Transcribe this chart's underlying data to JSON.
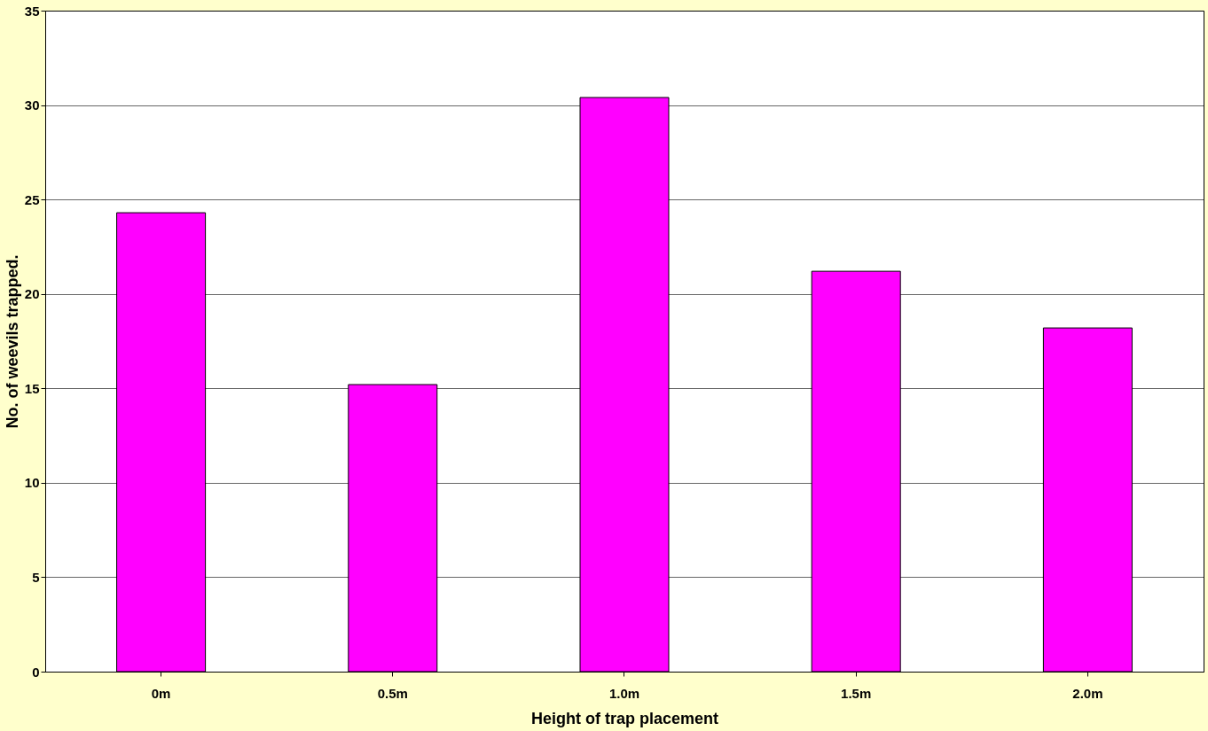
{
  "chart_data": {
    "type": "bar",
    "xlabel": "Height of trap placement",
    "ylabel": "No. of weevils trapped.",
    "categories": [
      "0m",
      "0.5m",
      "1.0m",
      "1.5m",
      "2.0m"
    ],
    "values": [
      24.3,
      15.2,
      30.4,
      21.2,
      18.2
    ],
    "color": "#ff00ff",
    "ylim": [
      0,
      35
    ],
    "yticks": [
      0,
      5,
      10,
      15,
      20,
      25,
      30,
      35
    ],
    "grid": "y"
  }
}
